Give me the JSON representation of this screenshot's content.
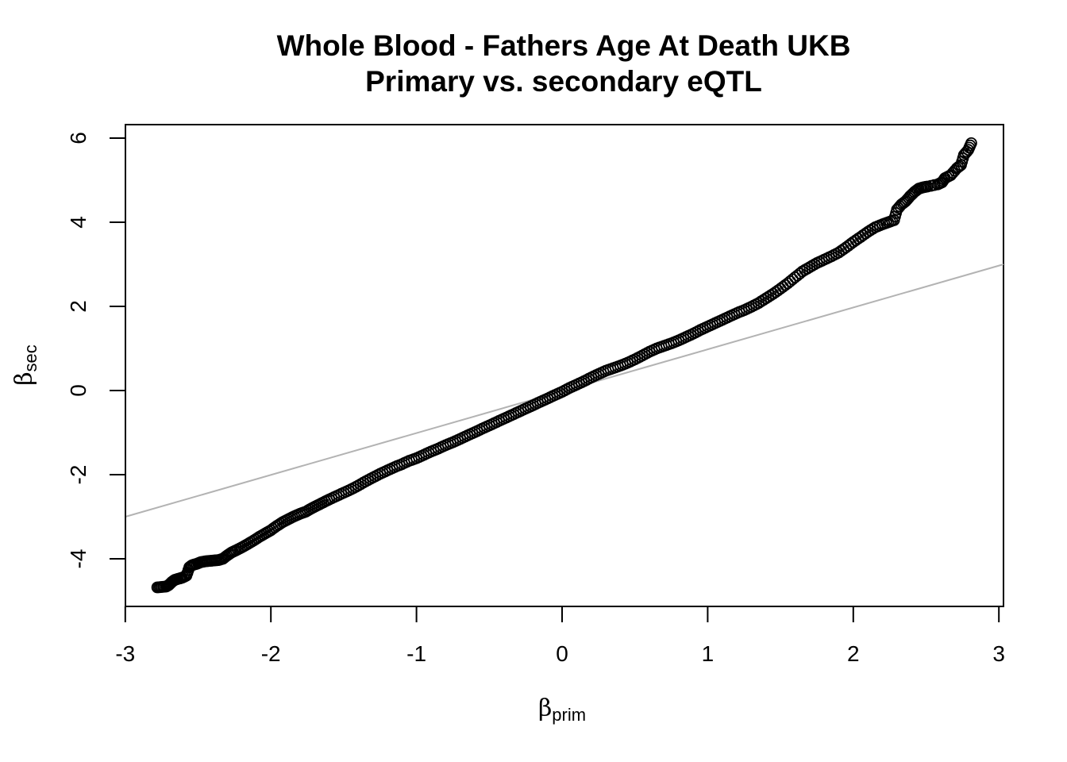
{
  "chart_data": {
    "type": "scatter",
    "title": "Whole Blood - Fathers Age At Death UKB",
    "subtitle": "Primary vs. secondary eQTL",
    "xlabel": {
      "symbol": "β",
      "subscript": "prim"
    },
    "ylabel": {
      "symbol": "β",
      "subscript": "sec"
    },
    "xlim": [
      -3,
      3
    ],
    "ylim": [
      -5.1,
      6.3
    ],
    "x_ticks": [
      -3,
      -2,
      -1,
      0,
      1,
      2,
      3
    ],
    "x_tick_labels": [
      "-3",
      "-2",
      "-1",
      "0",
      "1",
      "2",
      "3"
    ],
    "y_ticks": [
      -4,
      -2,
      0,
      2,
      4,
      6
    ],
    "y_tick_labels": [
      "-4",
      "-2",
      "0",
      "2",
      "4",
      "6"
    ],
    "grid": false,
    "legend": "none",
    "point_color": "#000000",
    "marker": "open-circle",
    "reference_line": {
      "slope": 1,
      "intercept": 0,
      "color": "#b3b3b3"
    },
    "series": [
      {
        "points": [
          [
            -2.78,
            -4.68
          ],
          [
            -2.75,
            -4.67
          ],
          [
            -2.72,
            -4.66
          ],
          [
            -2.7,
            -4.62
          ],
          [
            -2.68,
            -4.55
          ],
          [
            -2.66,
            -4.5
          ],
          [
            -2.63,
            -4.47
          ],
          [
            -2.61,
            -4.45
          ],
          [
            -2.58,
            -4.4
          ],
          [
            -2.56,
            -4.2
          ],
          [
            -2.54,
            -4.15
          ],
          [
            -2.51,
            -4.12
          ],
          [
            -2.48,
            -4.08
          ],
          [
            -2.45,
            -4.06
          ],
          [
            -2.42,
            -4.05
          ],
          [
            -2.39,
            -4.04
          ],
          [
            -2.36,
            -4.03
          ],
          [
            -2.33,
            -4.0
          ],
          [
            -2.3,
            -3.92
          ],
          [
            -2.27,
            -3.85
          ],
          [
            -2.24,
            -3.8
          ],
          [
            -2.2,
            -3.73
          ],
          [
            -2.16,
            -3.65
          ],
          [
            -2.12,
            -3.57
          ],
          [
            -2.08,
            -3.48
          ],
          [
            -2.04,
            -3.4
          ],
          [
            -2.0,
            -3.32
          ],
          [
            -1.96,
            -3.22
          ],
          [
            -1.92,
            -3.13
          ],
          [
            -1.88,
            -3.06
          ],
          [
            -1.84,
            -2.99
          ],
          [
            -1.8,
            -2.93
          ],
          [
            -1.76,
            -2.88
          ],
          [
            -1.72,
            -2.8
          ],
          [
            -1.68,
            -2.73
          ],
          [
            -1.64,
            -2.66
          ],
          [
            -1.6,
            -2.59
          ],
          [
            -1.55,
            -2.51
          ],
          [
            -1.5,
            -2.43
          ],
          [
            -1.45,
            -2.35
          ],
          [
            -1.4,
            -2.26
          ],
          [
            -1.35,
            -2.16
          ],
          [
            -1.3,
            -2.07
          ],
          [
            -1.25,
            -1.98
          ],
          [
            -1.2,
            -1.9
          ],
          [
            -1.15,
            -1.82
          ],
          [
            -1.1,
            -1.75
          ],
          [
            -1.05,
            -1.67
          ],
          [
            -1.0,
            -1.61
          ],
          [
            -0.95,
            -1.53
          ],
          [
            -0.9,
            -1.45
          ],
          [
            -0.85,
            -1.38
          ],
          [
            -0.8,
            -1.3
          ],
          [
            -0.75,
            -1.23
          ],
          [
            -0.7,
            -1.15
          ],
          [
            -0.65,
            -1.07
          ],
          [
            -0.6,
            -0.99
          ],
          [
            -0.55,
            -0.91
          ],
          [
            -0.5,
            -0.83
          ],
          [
            -0.45,
            -0.75
          ],
          [
            -0.4,
            -0.67
          ],
          [
            -0.35,
            -0.59
          ],
          [
            -0.3,
            -0.51
          ],
          [
            -0.25,
            -0.43
          ],
          [
            -0.2,
            -0.35
          ],
          [
            -0.15,
            -0.27
          ],
          [
            -0.1,
            -0.19
          ],
          [
            -0.05,
            -0.11
          ],
          [
            0.0,
            -0.03
          ],
          [
            0.05,
            0.06
          ],
          [
            0.1,
            0.14
          ],
          [
            0.15,
            0.22
          ],
          [
            0.2,
            0.31
          ],
          [
            0.25,
            0.39
          ],
          [
            0.3,
            0.47
          ],
          [
            0.35,
            0.53
          ],
          [
            0.4,
            0.59
          ],
          [
            0.45,
            0.66
          ],
          [
            0.5,
            0.74
          ],
          [
            0.55,
            0.83
          ],
          [
            0.6,
            0.92
          ],
          [
            0.65,
            1.0
          ],
          [
            0.7,
            1.06
          ],
          [
            0.75,
            1.12
          ],
          [
            0.8,
            1.19
          ],
          [
            0.85,
            1.27
          ],
          [
            0.9,
            1.35
          ],
          [
            0.95,
            1.44
          ],
          [
            1.0,
            1.52
          ],
          [
            1.05,
            1.6
          ],
          [
            1.1,
            1.68
          ],
          [
            1.15,
            1.76
          ],
          [
            1.2,
            1.84
          ],
          [
            1.25,
            1.91
          ],
          [
            1.3,
            1.99
          ],
          [
            1.35,
            2.08
          ],
          [
            1.4,
            2.19
          ],
          [
            1.45,
            2.3
          ],
          [
            1.5,
            2.42
          ],
          [
            1.55,
            2.55
          ],
          [
            1.6,
            2.69
          ],
          [
            1.65,
            2.83
          ],
          [
            1.7,
            2.93
          ],
          [
            1.75,
            3.03
          ],
          [
            1.8,
            3.11
          ],
          [
            1.85,
            3.19
          ],
          [
            1.9,
            3.28
          ],
          [
            1.95,
            3.4
          ],
          [
            2.0,
            3.53
          ],
          [
            2.05,
            3.65
          ],
          [
            2.1,
            3.77
          ],
          [
            2.15,
            3.88
          ],
          [
            2.2,
            3.95
          ],
          [
            2.24,
            4.0
          ],
          [
            2.28,
            4.05
          ],
          [
            2.3,
            4.3
          ],
          [
            2.33,
            4.42
          ],
          [
            2.36,
            4.5
          ],
          [
            2.39,
            4.62
          ],
          [
            2.42,
            4.72
          ],
          [
            2.45,
            4.8
          ],
          [
            2.48,
            4.83
          ],
          [
            2.51,
            4.85
          ],
          [
            2.58,
            4.9
          ],
          [
            2.61,
            4.95
          ],
          [
            2.63,
            5.05
          ],
          [
            2.67,
            5.12
          ],
          [
            2.71,
            5.28
          ],
          [
            2.74,
            5.36
          ],
          [
            2.76,
            5.6
          ],
          [
            2.79,
            5.72
          ],
          [
            2.81,
            5.88
          ]
        ]
      }
    ]
  }
}
